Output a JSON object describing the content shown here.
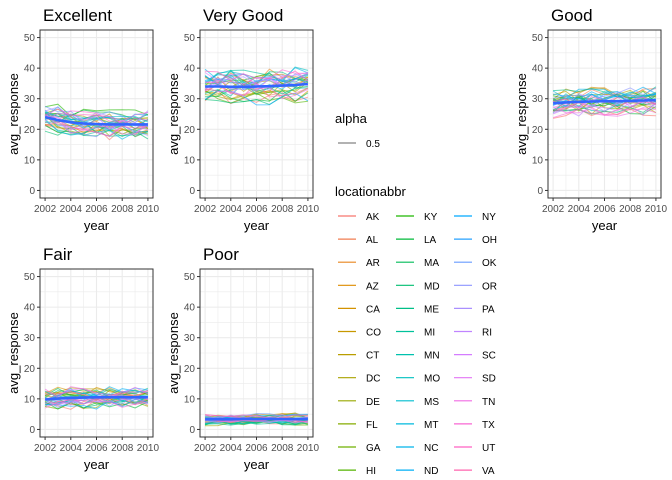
{
  "chart_data": [
    {
      "type": "line",
      "title": "Excellent",
      "xlabel": "year",
      "ylabel": "avg_response",
      "xlim": [
        2002,
        2010
      ],
      "ylim": [
        0,
        50
      ],
      "xticks": [
        "2002",
        "2004",
        "2006",
        "2008",
        "2010"
      ],
      "yticks": [
        "0",
        "10",
        "20",
        "30",
        "40",
        "50"
      ],
      "grid": true,
      "spread": 5,
      "smooth": [
        24.0,
        23.0,
        22.3,
        21.9,
        21.7,
        21.6,
        21.6,
        21.6,
        21.6
      ]
    },
    {
      "type": "line",
      "title": "Very Good",
      "xlabel": "year",
      "ylabel": "avg_response",
      "xlim": [
        2002,
        2010
      ],
      "ylim": [
        0,
        50
      ],
      "xticks": [
        "2002",
        "2004",
        "2006",
        "2008",
        "2010"
      ],
      "yticks": [
        "0",
        "10",
        "20",
        "30",
        "40",
        "50"
      ],
      "grid": true,
      "spread": 6,
      "smooth": [
        34.0,
        34.0,
        33.9,
        33.9,
        34.0,
        34.1,
        34.3,
        34.5,
        34.8
      ]
    },
    {
      "type": "line",
      "title": "Good",
      "xlabel": "year",
      "ylabel": "avg_response",
      "xlim": [
        2002,
        2010
      ],
      "ylim": [
        0,
        50
      ],
      "xticks": [
        "2002",
        "2004",
        "2006",
        "2008",
        "2010"
      ],
      "yticks": [
        "0",
        "10",
        "20",
        "30",
        "40",
        "50"
      ],
      "grid": true,
      "spread": 5,
      "smooth": [
        28.5,
        28.8,
        29.0,
        29.1,
        29.2,
        29.2,
        29.3,
        29.4,
        29.5
      ]
    },
    {
      "type": "line",
      "title": "Fair",
      "xlabel": "year",
      "ylabel": "avg_response",
      "xlim": [
        2002,
        2010
      ],
      "ylim": [
        0,
        50
      ],
      "xticks": [
        "2002",
        "2004",
        "2006",
        "2008",
        "2010"
      ],
      "yticks": [
        "0",
        "10",
        "20",
        "30",
        "40",
        "50"
      ],
      "grid": true,
      "spread": 4,
      "smooth": [
        9.8,
        10.1,
        10.3,
        10.4,
        10.5,
        10.5,
        10.5,
        10.5,
        10.5
      ]
    },
    {
      "type": "line",
      "title": "Poor",
      "xlabel": "year",
      "ylabel": "avg_response",
      "xlim": [
        2002,
        2010
      ],
      "ylim": [
        0,
        50
      ],
      "xticks": [
        "2002",
        "2004",
        "2006",
        "2008",
        "2010"
      ],
      "yticks": [
        "0",
        "10",
        "20",
        "30",
        "40",
        "50"
      ],
      "grid": true,
      "spread": 2,
      "smooth": [
        3.3,
        3.3,
        3.3,
        3.4,
        3.4,
        3.4,
        3.4,
        3.4,
        3.4
      ]
    }
  ],
  "x_years": [
    2002,
    2003,
    2004,
    2005,
    2006,
    2007,
    2008,
    2009,
    2010
  ],
  "legend": {
    "alpha_title": "alpha",
    "alpha_value": "0.5",
    "location_title": "locationabbr",
    "locations": [
      "AK",
      "AL",
      "AR",
      "AZ",
      "CA",
      "CO",
      "CT",
      "DC",
      "DE",
      "FL",
      "GA",
      "HI",
      "KY",
      "LA",
      "MA",
      "MD",
      "ME",
      "MI",
      "MN",
      "MO",
      "MS",
      "MT",
      "NC",
      "ND",
      "NY",
      "OH",
      "OK",
      "OR",
      "PA",
      "RI",
      "SC",
      "SD",
      "TN",
      "TX",
      "UT",
      "VA"
    ],
    "colors": [
      "#F8766D",
      "#F17D51",
      "#E8851F",
      "#DE8C00",
      "#D39200",
      "#C79800",
      "#B99E00",
      "#AAA300",
      "#99A800",
      "#86AC00",
      "#6FB000",
      "#53B400",
      "#1FB700",
      "#00BA38",
      "#00BC59",
      "#00BE71",
      "#00BF87",
      "#00C19B",
      "#00C1AE",
      "#00C0BF",
      "#00BECF",
      "#00BADE",
      "#00B5EB",
      "#00AFF6",
      "#00A9FF",
      "#27A2FF",
      "#699CFF",
      "#8E96FF",
      "#AA8FFF",
      "#C084FF",
      "#D47CFF",
      "#E376F4",
      "#F06CE4",
      "#F967D3",
      "#FF61C2",
      "#FF63AE"
    ]
  },
  "style": {
    "smooth_color": "#3366FF",
    "grid_color": "#EBEBEB",
    "text_color": "#000000",
    "tick_color": "#4D4D4D"
  }
}
